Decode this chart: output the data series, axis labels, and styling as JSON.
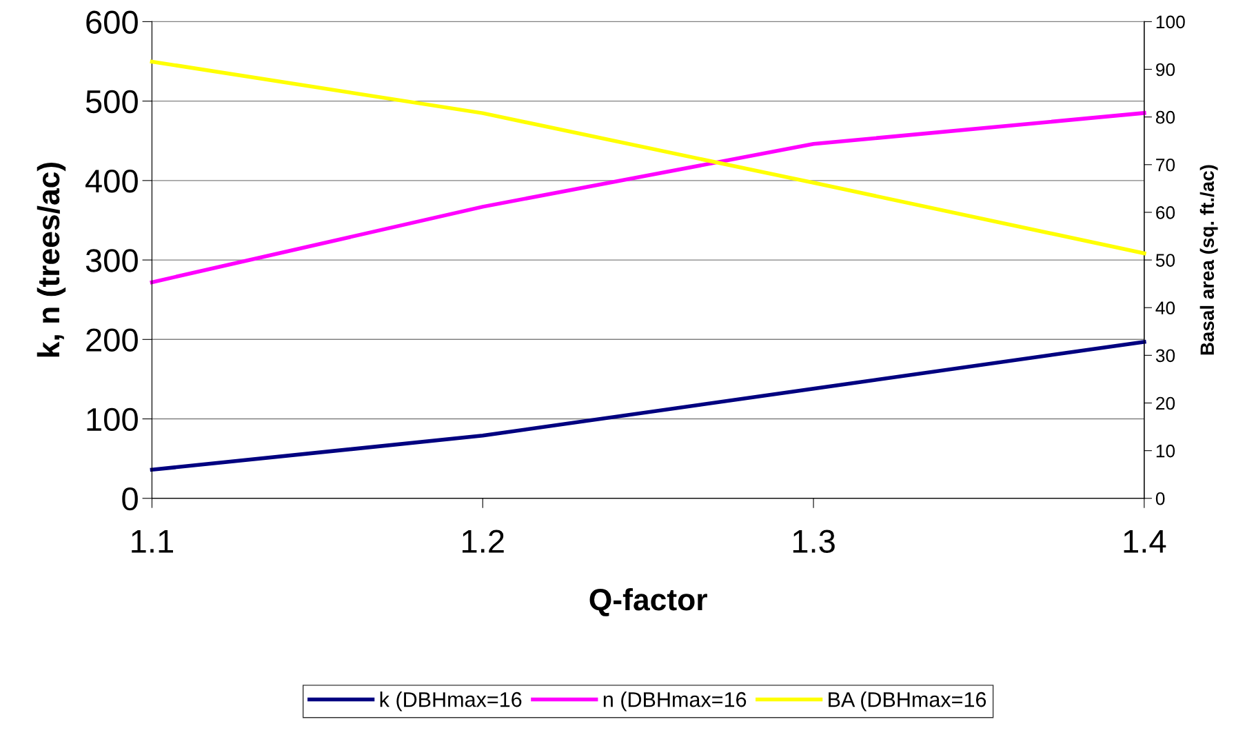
{
  "chart_data": {
    "type": "line",
    "xlabel": "Q-factor",
    "ylabel": "k, n (trees/ac)",
    "y2label": "Basal area (sq. ft./ac)",
    "x": [
      1.1,
      1.2,
      1.3,
      1.4
    ],
    "xlim": [
      1.1,
      1.4
    ],
    "xticks": [
      1.1,
      1.2,
      1.3,
      1.4
    ],
    "ylim": [
      0,
      600
    ],
    "yticks": [
      0,
      100,
      200,
      300,
      400,
      500,
      600
    ],
    "y2lim": [
      0,
      100
    ],
    "y2ticks": [
      0,
      10,
      20,
      30,
      40,
      50,
      60,
      70,
      80,
      90,
      100
    ],
    "grid": "y",
    "legend": "bottom",
    "marker": "none",
    "line_style": "solid",
    "series": [
      {
        "name": "k (DBHmax=16",
        "color": "#000080",
        "values": [
          36,
          79,
          138,
          197
        ]
      },
      {
        "name": "n (DBHmax=16",
        "color": "#ff00ff",
        "values": [
          272,
          367,
          446,
          485
        ]
      },
      {
        "name": "BA (DBHmax=16",
        "color": "#ffff00",
        "values": [
          91.6,
          80.8,
          66.2,
          51.4
        ],
        "axis": "y2"
      }
    ]
  }
}
